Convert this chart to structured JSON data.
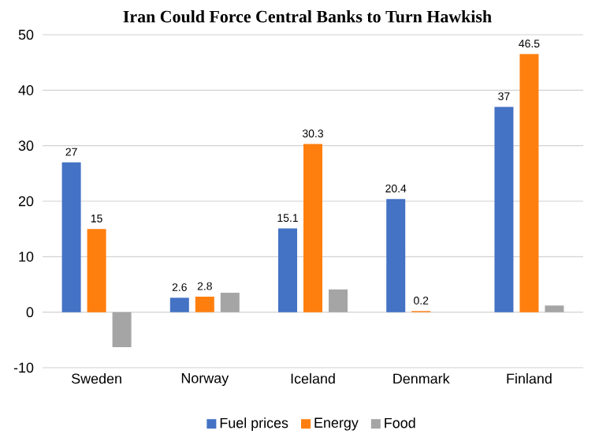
{
  "chart_data": {
    "type": "bar",
    "title": "Iran Could Force Central Banks to Turn Hawkish",
    "categories": [
      "Sweden",
      "Norway",
      "Iceland",
      "Denmark",
      "Finland"
    ],
    "series": [
      {
        "name": "Fuel prices",
        "color": "#4472c4",
        "values": [
          27,
          2.6,
          15.1,
          20.4,
          37
        ],
        "value_labels": [
          "27",
          "2.6",
          "15.1",
          "20.4",
          "37"
        ]
      },
      {
        "name": "Energy",
        "color": "#ff7f0e",
        "values": [
          15,
          2.8,
          30.3,
          0.2,
          46.5
        ],
        "value_labels": [
          "15",
          "2.8",
          "30.3",
          "0.2",
          "46.5"
        ]
      },
      {
        "name": "Food",
        "color": "#a5a5a5",
        "values": [
          -6.3,
          3.5,
          4.1,
          null,
          1.2
        ]
      }
    ],
    "ylim": [
      -10,
      50
    ],
    "yticks": [
      -10,
      0,
      10,
      20,
      30,
      40,
      50
    ],
    "grid": "y",
    "legend": "bottom"
  }
}
